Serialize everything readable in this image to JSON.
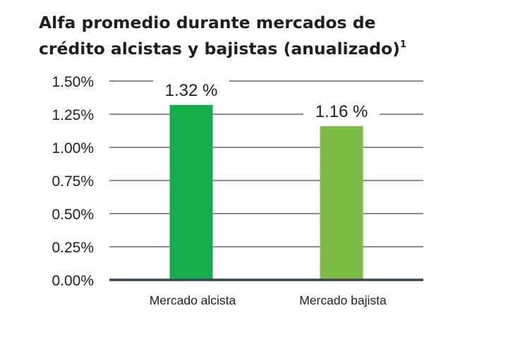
{
  "chart_data": {
    "type": "bar",
    "title_line1": "Alfa promedio durante mercados de",
    "title_line2": "crédito alcistas y bajistas (anualizado)",
    "title_superscript": "1",
    "categories": [
      "Mercado alcista",
      "Mercado bajista"
    ],
    "values": [
      1.32,
      1.16
    ],
    "data_labels": [
      "1.32 %",
      "1.16 %"
    ],
    "yticks": [
      0,
      0.25,
      0.5,
      0.75,
      1.0,
      1.25,
      1.5
    ],
    "ytick_labels": [
      "0.00%",
      "0.25%",
      "0.50%",
      "0.75%",
      "1.00%",
      "1.25%",
      "1.50%"
    ],
    "ylim": [
      0,
      1.5
    ],
    "grid": true,
    "xlabel": "",
    "ylabel": "",
    "colors": {
      "bars": [
        "#13ae4b",
        "#7dbd43"
      ],
      "grid": "#4a4a4a",
      "baseline": "#3a4550"
    }
  }
}
